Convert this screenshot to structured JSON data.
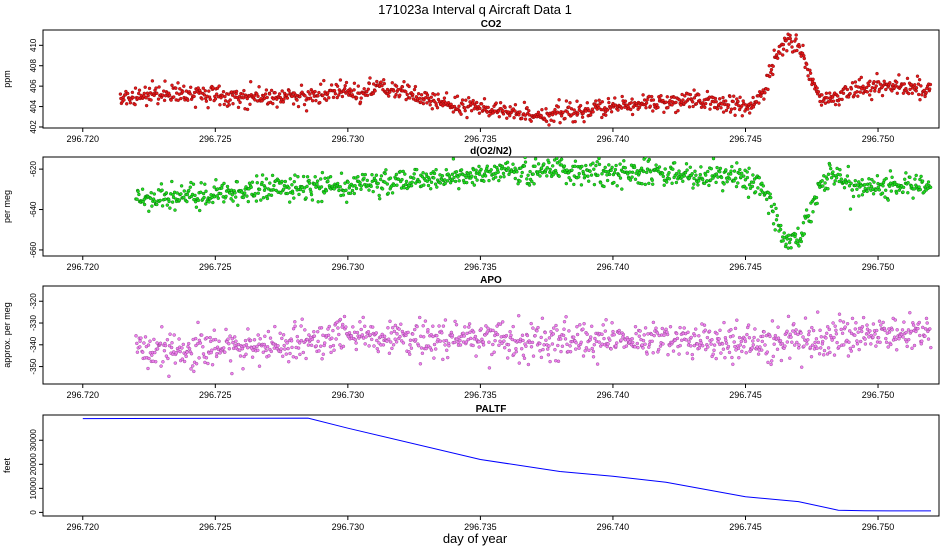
{
  "figure": {
    "title": "171023a   Interval q Aircraft Data 1",
    "xlabel": "day of year"
  },
  "chart_data": [
    {
      "type": "scatter",
      "title": "CO2",
      "ylabel": "ppm",
      "color": "#e41a1c",
      "edge_color": "#7a0000",
      "xlim": [
        296.7185,
        296.7523
      ],
      "ylim": [
        401.9,
        411.5
      ],
      "xticks": [
        296.72,
        296.725,
        296.73,
        296.735,
        296.74,
        296.745,
        296.75
      ],
      "xtick_labels": [
        "296.720",
        "296.725",
        "296.730",
        "296.735",
        "296.740",
        "296.745",
        "296.750"
      ],
      "yticks": [
        402,
        404,
        406,
        408,
        410
      ],
      "ytick_labels": [
        "402",
        "404",
        "406",
        "408",
        "410"
      ],
      "x_range": [
        296.7214,
        296.752
      ],
      "noise": 0.45,
      "profile": [
        [
          296.7214,
          404.8
        ],
        [
          296.7225,
          405.2
        ],
        [
          296.724,
          405.3
        ],
        [
          296.7255,
          405.1
        ],
        [
          296.727,
          404.9
        ],
        [
          296.7285,
          405.0
        ],
        [
          296.7297,
          405.6
        ],
        [
          296.7305,
          405.3
        ],
        [
          296.7312,
          405.8
        ],
        [
          296.732,
          405.4
        ],
        [
          296.733,
          404.6
        ],
        [
          296.7345,
          404.0
        ],
        [
          296.736,
          403.4
        ],
        [
          296.7375,
          403.2
        ],
        [
          296.739,
          403.6
        ],
        [
          296.7405,
          404.1
        ],
        [
          296.742,
          404.5
        ],
        [
          296.744,
          404.4
        ],
        [
          296.7452,
          403.8
        ],
        [
          296.7457,
          405.5
        ],
        [
          296.7461,
          408.5
        ],
        [
          296.7465,
          410.5
        ],
        [
          296.7469,
          410.6
        ],
        [
          296.7473,
          408.0
        ],
        [
          296.7477,
          405.0
        ],
        [
          296.7482,
          404.8
        ],
        [
          296.749,
          405.7
        ],
        [
          296.75,
          406.0
        ],
        [
          296.751,
          405.9
        ],
        [
          296.752,
          405.7
        ]
      ]
    },
    {
      "type": "scatter",
      "title": "d(O2/N2)",
      "ylabel": "per meg",
      "color": "#22dd22",
      "edge_color": "#006600",
      "xlim": [
        296.7185,
        296.7523
      ],
      "ylim": [
        -663,
        -614
      ],
      "xticks": [
        296.72,
        296.725,
        296.73,
        296.735,
        296.74,
        296.745,
        296.75
      ],
      "xtick_labels": [
        "296.720",
        "296.725",
        "296.730",
        "296.735",
        "296.740",
        "296.745",
        "296.750"
      ],
      "yticks": [
        -620,
        -640,
        -660
      ],
      "ytick_labels": [
        "-620",
        "-640",
        "-660"
      ],
      "x_range": [
        296.722,
        296.752
      ],
      "noise": 3.0,
      "profile": [
        [
          296.722,
          -634.0
        ],
        [
          296.724,
          -633.0
        ],
        [
          296.726,
          -631.0
        ],
        [
          296.728,
          -629.0
        ],
        [
          296.73,
          -628.0
        ],
        [
          296.732,
          -626.0
        ],
        [
          296.734,
          -624.0
        ],
        [
          296.736,
          -621.0
        ],
        [
          296.738,
          -621.0
        ],
        [
          296.74,
          -622.0
        ],
        [
          296.742,
          -622.0
        ],
        [
          296.744,
          -624.0
        ],
        [
          296.7452,
          -625.0
        ],
        [
          296.7458,
          -632.0
        ],
        [
          296.7462,
          -645.0
        ],
        [
          296.7466,
          -656.0
        ],
        [
          296.747,
          -655.0
        ],
        [
          296.7474,
          -642.0
        ],
        [
          296.7478,
          -628.0
        ],
        [
          296.7482,
          -622.0
        ],
        [
          296.749,
          -628.0
        ],
        [
          296.75,
          -629.0
        ],
        [
          296.751,
          -628.0
        ],
        [
          296.752,
          -630.0
        ]
      ]
    },
    {
      "type": "scatter",
      "title": "APO",
      "ylabel": "approx. per meg",
      "color": "#ee82ee",
      "edge_color": "#8b3a8b",
      "xlim": [
        296.7185,
        296.7523
      ],
      "ylim": [
        -358,
        -313
      ],
      "xticks": [
        296.72,
        296.725,
        296.73,
        296.735,
        296.74,
        296.745,
        296.75
      ],
      "xtick_labels": [
        "296.720",
        "296.725",
        "296.730",
        "296.735",
        "296.740",
        "296.745",
        "296.750"
      ],
      "yticks": [
        -320,
        -330,
        -340,
        -350
      ],
      "ytick_labels": [
        "-320",
        "-330",
        "-340",
        "-350"
      ],
      "x_range": [
        296.722,
        296.752
      ],
      "noise": 4.2,
      "profile": [
        [
          296.722,
          -343.0
        ],
        [
          296.725,
          -342.0
        ],
        [
          296.728,
          -340.0
        ],
        [
          296.73,
          -336.0
        ],
        [
          296.732,
          -337.0
        ],
        [
          296.735,
          -338.0
        ],
        [
          296.738,
          -337.0
        ],
        [
          296.741,
          -337.0
        ],
        [
          296.744,
          -338.0
        ],
        [
          296.746,
          -340.0
        ],
        [
          296.748,
          -336.0
        ],
        [
          296.75,
          -335.0
        ],
        [
          296.752,
          -335.0
        ]
      ]
    },
    {
      "type": "line",
      "title": "PALTF",
      "ylabel": "feet",
      "color": "#0000ff",
      "xlim": [
        296.7185,
        296.7523
      ],
      "ylim": [
        -1500,
        40500
      ],
      "xticks": [
        296.72,
        296.725,
        296.73,
        296.735,
        296.74,
        296.745,
        296.75
      ],
      "xtick_labels": [
        "296.720",
        "296.725",
        "296.730",
        "296.735",
        "296.740",
        "296.745",
        "296.750"
      ],
      "yticks": [
        0,
        10000,
        20000,
        30000
      ],
      "ytick_labels": [
        "0",
        "10000",
        "20000",
        "30000"
      ],
      "x": [
        296.72,
        296.7285,
        296.73,
        296.735,
        296.738,
        296.74,
        296.742,
        296.745,
        296.747,
        296.7485,
        296.7495,
        296.751,
        296.752
      ],
      "y": [
        39000,
        39200,
        35000,
        22000,
        17000,
        15000,
        12500,
        6500,
        4500,
        900,
        700,
        600,
        600
      ]
    }
  ]
}
